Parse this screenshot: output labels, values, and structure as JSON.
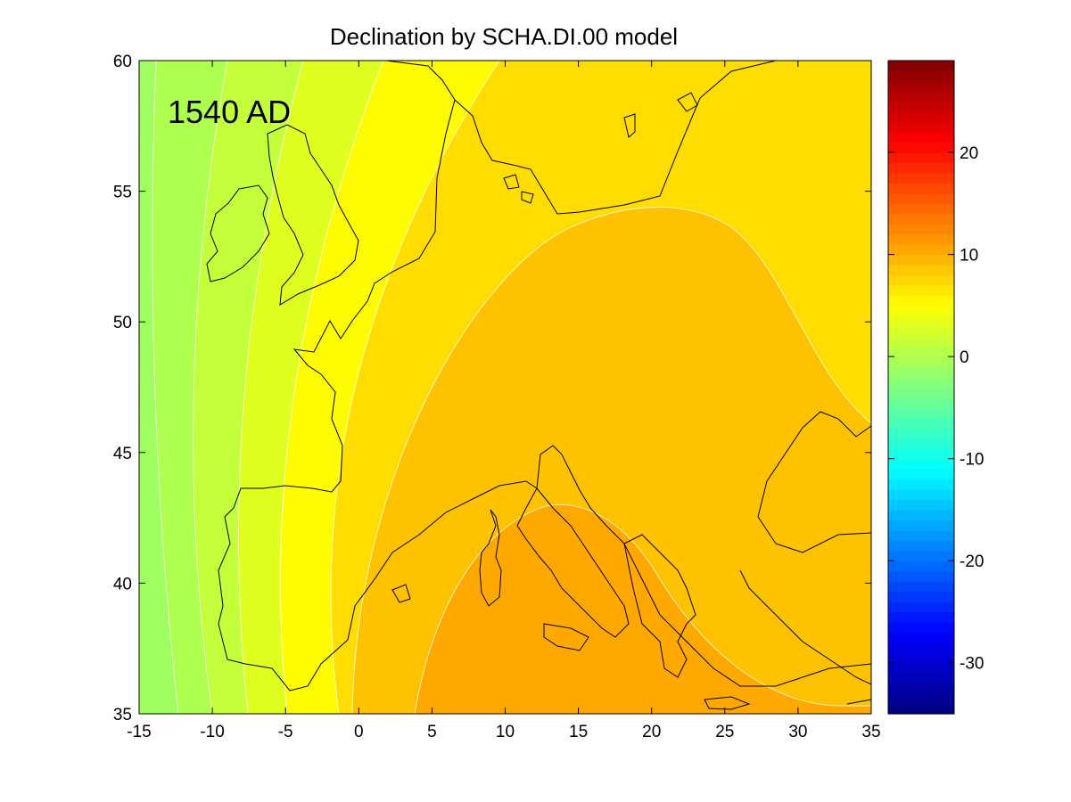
{
  "chart_data": {
    "type": "heatmap",
    "title": "Declination by SCHA.DI.00 model",
    "annotation": "1540 AD",
    "xlabel": "",
    "ylabel": "",
    "xlim": [
      -15,
      35
    ],
    "ylim": [
      35,
      60
    ],
    "x_ticks": [
      -15,
      -10,
      -5,
      0,
      5,
      10,
      15,
      20,
      25,
      30,
      35
    ],
    "y_ticks": [
      35,
      40,
      45,
      50,
      55,
      60
    ],
    "colorbar": {
      "colormap": "jet",
      "clim": [
        -35,
        29
      ],
      "ticks": [
        -30,
        -20,
        -10,
        0,
        10,
        20
      ]
    },
    "grid": false,
    "contour_bands": [
      {
        "range": [
          -1,
          0
        ],
        "color": "#9fff60",
        "label": "-1 to 0"
      },
      {
        "range": [
          0,
          1
        ],
        "color": "#afff50",
        "label": "0 to 1"
      },
      {
        "range": [
          1,
          2
        ],
        "color": "#c4ff3b",
        "label": "1 to 2"
      },
      {
        "range": [
          2,
          3
        ],
        "color": "#dfff20",
        "label": "2 to 3"
      },
      {
        "range": [
          3,
          4
        ],
        "color": "#fffb00",
        "label": "3 to 4"
      },
      {
        "range": [
          4,
          5
        ],
        "color": "#ffdd00",
        "label": "4 to 5"
      },
      {
        "range": [
          5,
          6
        ],
        "color": "#ffc200",
        "label": "5 to 6"
      },
      {
        "range": [
          6,
          7
        ],
        "color": "#ffa800",
        "label": "6 to 7"
      },
      {
        "range": [
          7,
          8
        ],
        "color": "#ff9300",
        "label": "7 to 8"
      }
    ]
  }
}
